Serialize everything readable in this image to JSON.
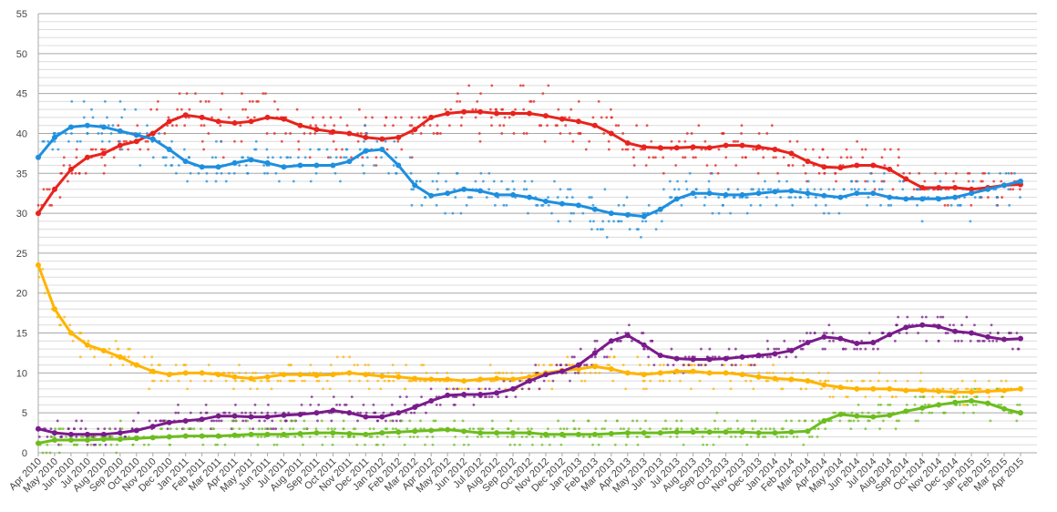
{
  "chart_data": {
    "type": "scatter",
    "title": "",
    "xlabel": "",
    "ylabel": "",
    "ylim": [
      0,
      55
    ],
    "y_ticks": [
      "0",
      "5",
      "10",
      "15",
      "20",
      "25",
      "30",
      "35",
      "40",
      "45",
      "50",
      "55"
    ],
    "grid": "horizontal, minor every 1, major every 5",
    "legend": "none",
    "categories": [
      "Apr 2010",
      "May 2010",
      "Jun 2010",
      "Jul 2010",
      "Aug 2010",
      "Sep 2010",
      "Oct 2010",
      "Nov 2010",
      "Dec 2010",
      "Jan 2011",
      "Feb 2011",
      "Mar 2011",
      "Apr 2011",
      "May 2011",
      "Jun 2011",
      "Jul 2011",
      "Aug 2011",
      "Sep 2011",
      "Oct 2011",
      "Nov 2011",
      "Dec 2011",
      "Jan 2012",
      "Feb 2012",
      "Mar 2012",
      "Apr 2012",
      "May 2012",
      "Jun 2012",
      "Jul 2012",
      "Aug 2012",
      "Sep 2012",
      "Oct 2012",
      "Nov 2012",
      "Dec 2012",
      "Jan 2013",
      "Feb 2013",
      "Mar 2013",
      "Apr 2013",
      "May 2013",
      "Jun 2013",
      "Jul 2013",
      "Aug 2013",
      "Sep 2013",
      "Oct 2013",
      "Nov 2013",
      "Dec 2013",
      "Jan 2014",
      "Feb 2014",
      "Mar 2014",
      "Apr 2014",
      "May 2014",
      "Jun 2014",
      "Jul 2014",
      "Aug 2014",
      "Sep 2014",
      "Oct 2014",
      "Nov 2014",
      "Dec 2014",
      "Jan 2015",
      "Feb 2015",
      "Mar 2015",
      "Apr 2015"
    ],
    "series": [
      {
        "color": "#e8231d",
        "values": [
          30,
          33,
          35.5,
          37,
          37.5,
          38.5,
          39,
          40,
          41.5,
          42.3,
          42,
          41.5,
          41.3,
          41.5,
          42,
          41.8,
          41,
          40.5,
          40.2,
          40,
          39.5,
          39.3,
          39.5,
          40.5,
          42,
          42.5,
          42.7,
          42.7,
          42.5,
          42.5,
          42.5,
          42.2,
          41.8,
          41.5,
          41,
          40,
          38.8,
          38.3,
          38.2,
          38.2,
          38.3,
          38.2,
          38.5,
          38.5,
          38.3,
          38,
          37.5,
          36.5,
          35.8,
          35.7,
          36,
          36,
          35.5,
          34.3,
          33.2,
          33.2,
          33.2,
          33,
          33.2,
          33.5,
          33.6
        ]
      },
      {
        "color": "#1d8fdf",
        "values": [
          37,
          39.5,
          40.8,
          41,
          40.8,
          40.3,
          39.8,
          39.3,
          38,
          36.5,
          35.8,
          35.8,
          36.3,
          36.7,
          36.3,
          35.8,
          36,
          36,
          36,
          36.5,
          37.8,
          38,
          36,
          33.5,
          32.2,
          32.5,
          33,
          32.8,
          32.3,
          32.3,
          32,
          31.5,
          31.2,
          31,
          30.5,
          30,
          29.8,
          29.6,
          30.5,
          31.8,
          32.5,
          32.5,
          32.3,
          32.3,
          32.5,
          32.7,
          32.8,
          32.5,
          32.2,
          32,
          32.5,
          32.5,
          32,
          31.8,
          31.8,
          31.8,
          32,
          32.5,
          33,
          33.5,
          34
        ]
      },
      {
        "color": "#ffb400",
        "values": [
          23.5,
          18,
          15,
          13.5,
          12.8,
          12,
          11,
          10.2,
          9.8,
          10,
          10,
          9.8,
          9.5,
          9.3,
          9.5,
          9.8,
          9.8,
          9.7,
          9.8,
          10,
          9.8,
          9.6,
          9.5,
          9.3,
          9.2,
          9.2,
          9,
          9.2,
          9.3,
          9.2,
          9.5,
          10,
          10.3,
          10.5,
          10.8,
          10.5,
          10,
          9.8,
          10,
          10.2,
          10.2,
          10,
          10,
          9.8,
          9.5,
          9.3,
          9.2,
          9,
          8.5,
          8.2,
          8,
          8,
          8,
          7.8,
          7.8,
          7.7,
          7.6,
          7.6,
          7.7,
          7.8,
          8
        ]
      },
      {
        "color": "#7a1b8b",
        "values": [
          3,
          2.5,
          2.3,
          2.3,
          2.3,
          2.5,
          2.8,
          3.3,
          3.8,
          4,
          4.2,
          4.6,
          4.6,
          4.5,
          4.5,
          4.7,
          4.8,
          5,
          5.3,
          5,
          4.5,
          4.5,
          5,
          5.7,
          6.5,
          7.2,
          7.3,
          7.3,
          7.5,
          8,
          9,
          9.8,
          10.2,
          11,
          12.5,
          14,
          14.7,
          13.5,
          12.2,
          11.8,
          11.7,
          11.7,
          11.8,
          12,
          12.2,
          12.4,
          12.8,
          13.8,
          14.5,
          14.3,
          13.7,
          13.8,
          14.8,
          15.7,
          16,
          15.8,
          15.2,
          15,
          14.5,
          14.2,
          14.3
        ]
      },
      {
        "color": "#6cbd1e",
        "values": [
          1.2,
          1.6,
          1.6,
          1.6,
          1.7,
          1.7,
          1.8,
          1.9,
          2,
          2.1,
          2.1,
          2.1,
          2.2,
          2.3,
          2.3,
          2.3,
          2.4,
          2.5,
          2.5,
          2.4,
          2.3,
          2.5,
          2.6,
          2.7,
          2.8,
          2.9,
          2.7,
          2.5,
          2.5,
          2.5,
          2.5,
          2.3,
          2.3,
          2.3,
          2.3,
          2.4,
          2.5,
          2.5,
          2.5,
          2.6,
          2.6,
          2.6,
          2.6,
          2.6,
          2.5,
          2.5,
          2.6,
          2.7,
          4,
          4.8,
          4.6,
          4.5,
          4.7,
          5.2,
          5.6,
          6,
          6.3,
          6.5,
          6.2,
          5.5,
          5
        ]
      }
    ]
  }
}
